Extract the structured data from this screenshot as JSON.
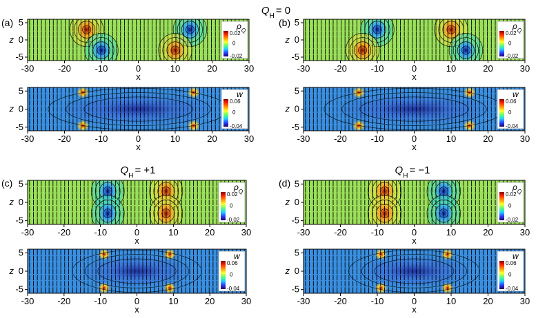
{
  "figure": {
    "groups": [
      {
        "id": "a",
        "tag": "(a)",
        "title": "Q_H = 0",
        "title_main": "Q",
        "title_sub": "H",
        "title_rest": "= 0",
        "show_title": true
      },
      {
        "id": "b",
        "tag": "(b)",
        "title": "",
        "show_title": false
      },
      {
        "id": "c",
        "tag": "(c)",
        "title": "Q_H = +1",
        "title_main": "Q",
        "title_sub": "H",
        "title_rest": "= +1",
        "show_title": true
      },
      {
        "id": "d",
        "tag": "(d)",
        "title": "Q_H = −1",
        "title_main": "Q",
        "title_sub": "H",
        "title_rest": "= −1",
        "show_title": true
      }
    ],
    "axis": {
      "x_label": "x",
      "z_label": "z",
      "x_ticks": [
        "-30",
        "-20",
        "-10",
        "0",
        "10",
        "20",
        "30"
      ],
      "z_ticks": [
        "5",
        "0",
        "-5"
      ]
    },
    "colorbars": {
      "rho": {
        "symbol": "ρ",
        "sub": "Q",
        "max_label": "0.02",
        "mid_label": "0",
        "min_label": "-0.02",
        "range": [
          -0.02,
          0.02
        ]
      },
      "w": {
        "symbol": "w",
        "max_label": "0.06",
        "mid_label": "0",
        "min_label": "-0.04",
        "range": [
          -0.04,
          0.06
        ]
      }
    },
    "colors": {
      "background_rho": "#9be05a",
      "background_w": "#3a8fe0",
      "positive": "#a01010",
      "negative": "#1a1a9c",
      "arrows": "#000000"
    }
  },
  "chart_data": [
    {
      "type": "heatmap",
      "panel": "a-top",
      "field": "rho_Q",
      "xlabel": "x",
      "ylabel": "z",
      "xlim": [
        -30,
        30
      ],
      "ylim": [
        -6,
        6
      ],
      "blobs": [
        {
          "x": -14,
          "z": 3,
          "sign": 1
        },
        {
          "x": -10,
          "z": -3,
          "sign": -1
        },
        {
          "x": 14,
          "z": 3,
          "sign": -1
        },
        {
          "x": 10,
          "z": -3,
          "sign": 1
        }
      ]
    },
    {
      "type": "heatmap",
      "panel": "a-bottom",
      "field": "w",
      "xlabel": "x",
      "ylabel": "z",
      "xlim": [
        -30,
        30
      ],
      "ylim": [
        -6,
        6
      ]
    },
    {
      "type": "heatmap",
      "panel": "b-top",
      "field": "rho_Q",
      "xlabel": "x",
      "ylabel": "z",
      "xlim": [
        -30,
        30
      ],
      "ylim": [
        -6,
        6
      ],
      "blobs": [
        {
          "x": -10,
          "z": 3,
          "sign": -1
        },
        {
          "x": -14,
          "z": -3,
          "sign": 1
        },
        {
          "x": 10,
          "z": 3,
          "sign": 1
        },
        {
          "x": 14,
          "z": -3,
          "sign": -1
        }
      ]
    },
    {
      "type": "heatmap",
      "panel": "b-bottom",
      "field": "w",
      "xlabel": "x",
      "ylabel": "z",
      "xlim": [
        -30,
        30
      ],
      "ylim": [
        -6,
        6
      ]
    },
    {
      "type": "heatmap",
      "panel": "c-top",
      "field": "rho_Q",
      "xlabel": "x",
      "ylabel": "z",
      "xlim": [
        -30,
        30
      ],
      "ylim": [
        -6,
        6
      ],
      "blobs": [
        {
          "x": -8,
          "z": 3,
          "sign": -1
        },
        {
          "x": -8,
          "z": -3,
          "sign": -1
        },
        {
          "x": 8,
          "z": 3,
          "sign": 1
        },
        {
          "x": 8,
          "z": -3,
          "sign": 1
        }
      ]
    },
    {
      "type": "heatmap",
      "panel": "c-bottom",
      "field": "w",
      "xlabel": "x",
      "ylabel": "z",
      "xlim": [
        -30,
        30
      ],
      "ylim": [
        -6,
        6
      ]
    },
    {
      "type": "heatmap",
      "panel": "d-top",
      "field": "rho_Q",
      "xlabel": "x",
      "ylabel": "z",
      "xlim": [
        -30,
        30
      ],
      "ylim": [
        -6,
        6
      ],
      "blobs": [
        {
          "x": -8,
          "z": 3,
          "sign": 1
        },
        {
          "x": -8,
          "z": -3,
          "sign": 1
        },
        {
          "x": 8,
          "z": 3,
          "sign": -1
        },
        {
          "x": 8,
          "z": -3,
          "sign": -1
        }
      ]
    },
    {
      "type": "heatmap",
      "panel": "d-bottom",
      "field": "w",
      "xlabel": "x",
      "ylabel": "z",
      "xlim": [
        -30,
        30
      ],
      "ylim": [
        -6,
        6
      ]
    }
  ]
}
